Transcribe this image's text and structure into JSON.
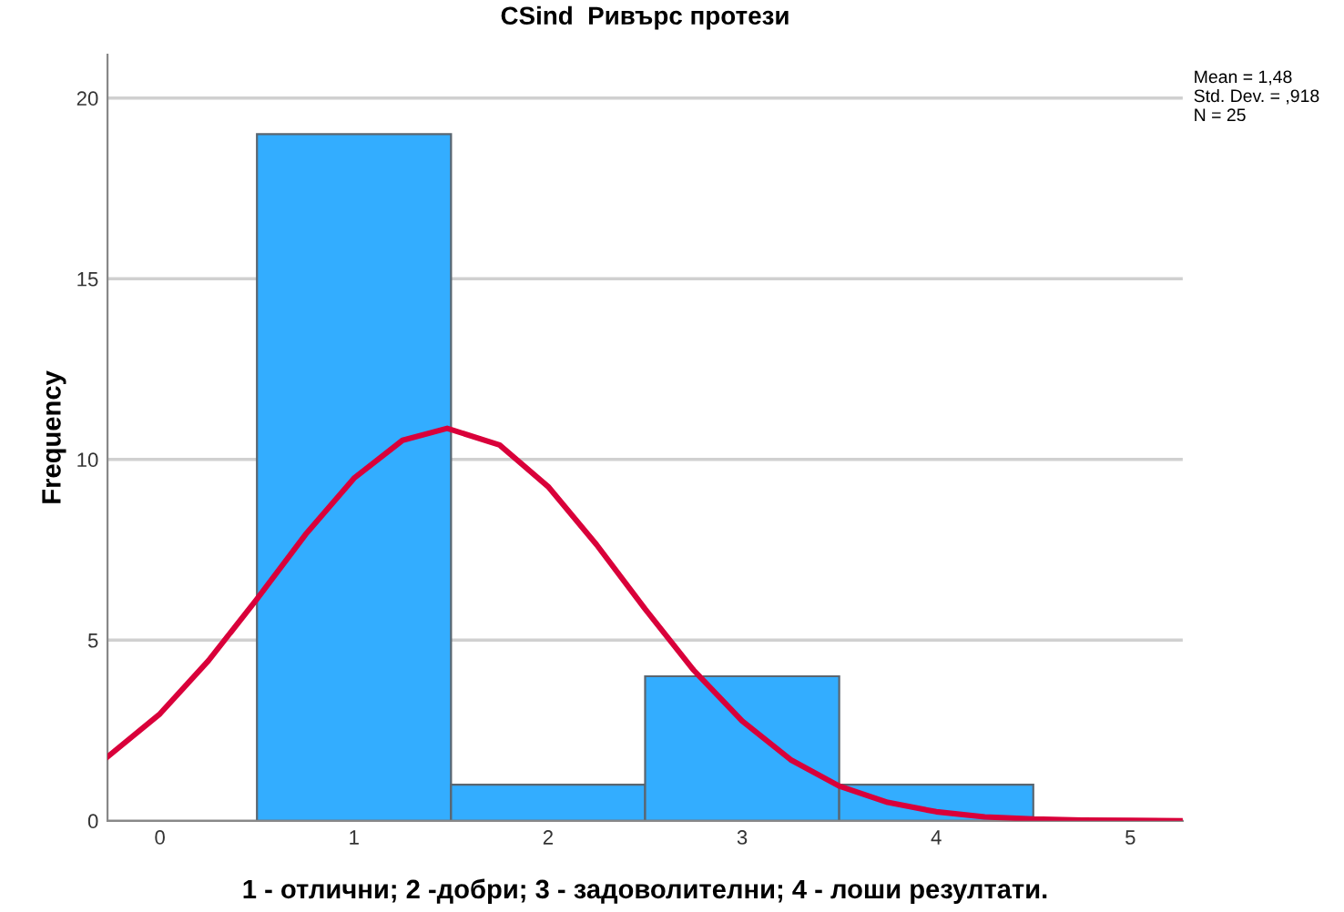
{
  "chart_data": {
    "type": "histogram",
    "title": "CSind  Ривърс протези",
    "xlabel": "1 - отлични; 2 -добри; 3 - задоволителни; 4 - лоши резултати.",
    "ylabel": "Frequency",
    "bins": [
      0.5,
      1.5,
      2.5,
      3.5,
      4.5
    ],
    "values": [
      19,
      1,
      4,
      1
    ],
    "color": "#33adff",
    "series": [
      {
        "type": "line",
        "color": "#d9003a",
        "x": [
          -0.27,
          0,
          0.25,
          0.5,
          0.75,
          1.0,
          1.25,
          1.48,
          1.75,
          2.0,
          2.25,
          2.5,
          2.75,
          3.0,
          3.25,
          3.5,
          3.75,
          4.0,
          4.25,
          4.5,
          4.75,
          5.0,
          5.27
        ],
        "values": [
          1.77,
          2.96,
          4.43,
          6.14,
          7.92,
          9.48,
          10.53,
          10.86,
          10.4,
          9.25,
          7.64,
          5.86,
          4.17,
          2.76,
          1.69,
          0.96,
          0.51,
          0.25,
          0.11,
          0.05,
          0.02,
          0.01,
          0.0
        ]
      }
    ],
    "annotations": [
      "Mean = 1,48\nStd. Dev. = ,918\nN = 25"
    ],
    "xlim": [
      -0.27,
      5.27
    ],
    "ylim": [
      0,
      21.2
    ],
    "xticks": [
      0,
      1,
      2,
      3,
      4,
      5
    ],
    "yticks": [
      0,
      5,
      10,
      15,
      20
    ],
    "grid": "y"
  }
}
